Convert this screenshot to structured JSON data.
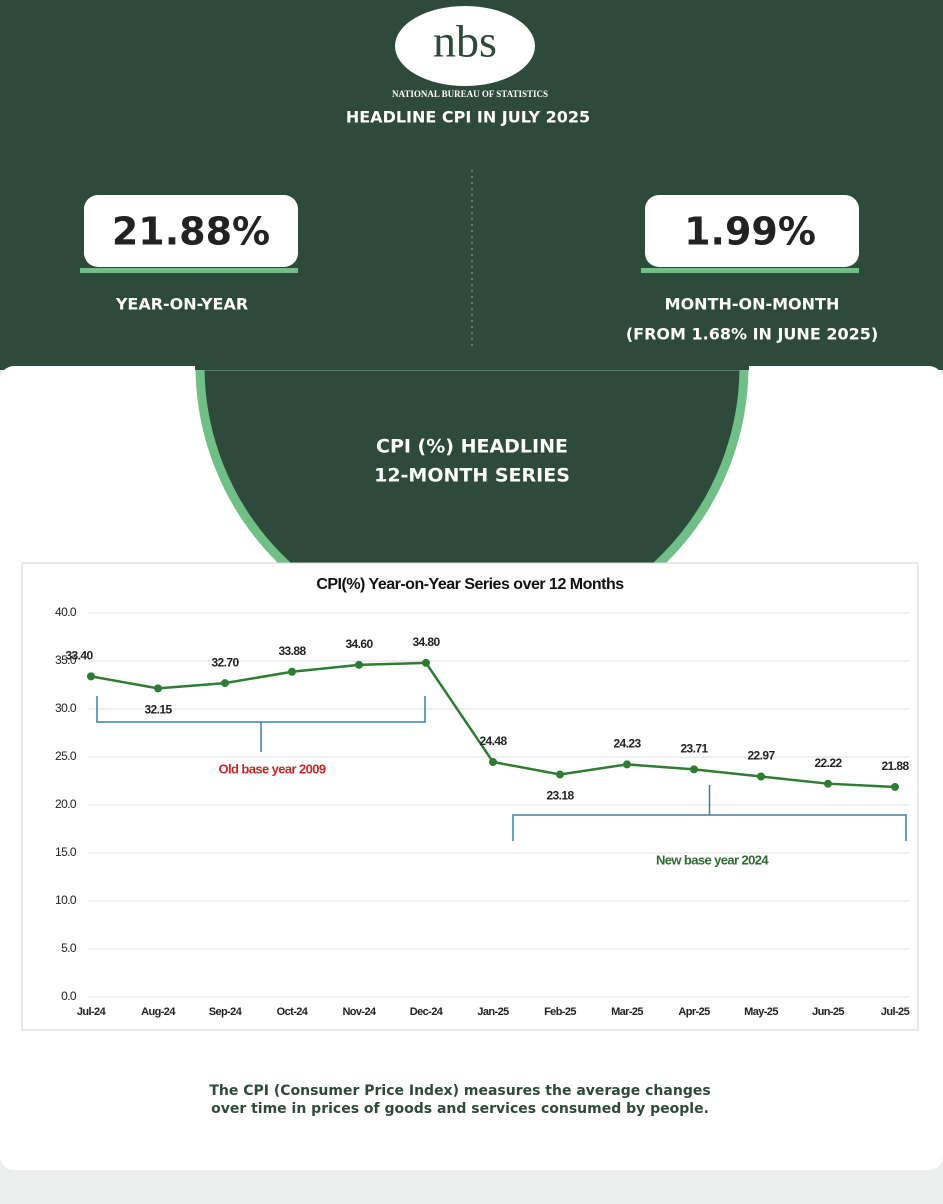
{
  "header": {
    "logo": "nbs",
    "org": "NATIONAL BUREAU OF STATISTICS",
    "title": "HEADLINE CPI IN JULY 2025",
    "yoy_value": "21.88%",
    "yoy_label": "YEAR-ON-YEAR",
    "mom_value": "1.99%",
    "mom_label": "MONTH-ON-MONTH",
    "mom_note": "(FROM 1.68% IN JUNE 2025)",
    "series_title_1": "CPI (%)  HEADLINE",
    "series_title_2": "12-MONTH SERIES"
  },
  "chart_data": {
    "type": "line",
    "title": "CPI(%) Year-on-Year Series over 12 Months",
    "categories": [
      "Jul-24",
      "Aug-24",
      "Sep-24",
      "Oct-24",
      "Nov-24",
      "Dec-24",
      "Jan-25",
      "Feb-25",
      "Mar-25",
      "Apr-25",
      "May-25",
      "Jun-25",
      "Jul-25"
    ],
    "series": [
      {
        "name": "CPI",
        "color": "#2e7d32",
        "values": [
          33.4,
          32.15,
          32.7,
          33.88,
          34.6,
          34.8,
          24.48,
          23.18,
          24.23,
          23.71,
          22.97,
          22.22,
          21.88
        ],
        "value_labels": [
          "33.40",
          "32.15",
          "32.70",
          "33.88",
          "34.60",
          "34.80",
          "24.48",
          "23.18",
          "24.23",
          "23.71",
          "22.97",
          "22.22",
          "21.88"
        ]
      }
    ],
    "ylim": [
      0,
      40
    ],
    "yticks": [
      {
        "value": 0,
        "label": "0.0"
      },
      {
        "value": 5,
        "label": "5.0"
      },
      {
        "value": 10,
        "label": "10.0"
      },
      {
        "value": 15,
        "label": "15.0"
      },
      {
        "value": 20,
        "label": "20.0"
      },
      {
        "value": 25,
        "label": "25.0"
      },
      {
        "value": 30,
        "label": "30.0"
      },
      {
        "value": 35,
        "label": "35.0"
      },
      {
        "value": 40,
        "label": "40.0"
      }
    ],
    "grid": true,
    "annotations": [
      "Old base year 2009",
      "New base year 2024"
    ]
  },
  "footer": {
    "line1": "The CPI (Consumer Price Index) measures the average changes",
    "line2": "over time in prices of goods and services consumed by people."
  }
}
